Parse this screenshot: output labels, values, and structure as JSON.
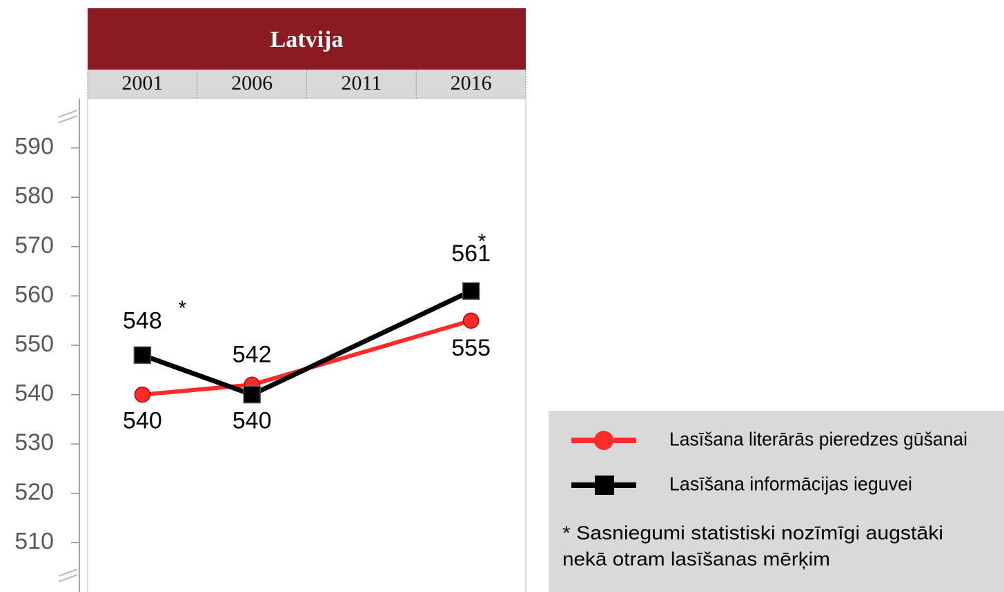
{
  "chart_data": {
    "type": "line",
    "title": "Latvija",
    "x": [
      2001,
      2006,
      2016
    ],
    "xlim": [
      1998.5,
      2018.5
    ],
    "xticks": [
      2001,
      2006,
      2011,
      2016
    ],
    "ylim": [
      500,
      600
    ],
    "yticks": [
      510,
      520,
      530,
      540,
      550,
      560,
      570,
      580,
      590
    ],
    "series": [
      {
        "name": "Lasīšana literārās pieredzes gūšanai",
        "color": "#ff2a2a",
        "marker": "circle",
        "values": [
          540,
          542,
          555
        ],
        "notes": [
          null,
          null,
          null
        ]
      },
      {
        "name": "Lasīšana informācijas ieguvei",
        "color": "#000000",
        "marker": "square",
        "values": [
          548,
          540,
          561
        ],
        "notes": [
          "*",
          null,
          "*"
        ]
      }
    ],
    "footnote": [
      "* Sasniegumi statistiski nozīmīgi augstāki",
      "nekā otram lasīšanas mērķim"
    ]
  }
}
